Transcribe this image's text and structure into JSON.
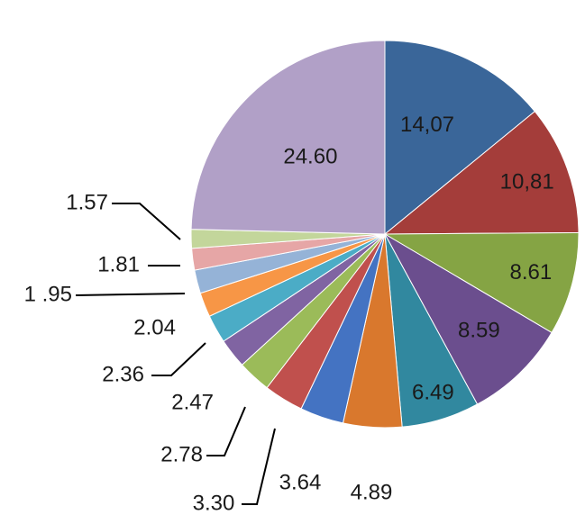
{
  "chart_data": {
    "type": "pie",
    "title": "",
    "start_angle_deg": 0,
    "direction": "clockwise",
    "slices": [
      {
        "label": "14,07",
        "value": 14.07,
        "color": "#3a6699"
      },
      {
        "label": "10,81",
        "value": 10.81,
        "color": "#a43d3a"
      },
      {
        "label": "8.61",
        "value": 8.61,
        "color": "#85a444"
      },
      {
        "label": "8.59",
        "value": 8.59,
        "color": "#6b4e8e"
      },
      {
        "label": "6.49",
        "value": 6.49,
        "color": "#31889f"
      },
      {
        "label": "4.89",
        "value": 4.89,
        "color": "#d9782d"
      },
      {
        "label": "3.64",
        "value": 3.64,
        "color": "#4473c2"
      },
      {
        "label": "3.30",
        "value": 3.3,
        "color": "#c0504d"
      },
      {
        "label": "2.78",
        "value": 2.78,
        "color": "#9bbb59"
      },
      {
        "label": "2.47",
        "value": 2.47,
        "color": "#8064a2"
      },
      {
        "label": "2.36",
        "value": 2.36,
        "color": "#4bacc6"
      },
      {
        "label": "2.04",
        "value": 2.04,
        "color": "#f79646"
      },
      {
        "label": "1 .95",
        "value": 1.95,
        "color": "#95b3d7"
      },
      {
        "label": "1.81",
        "value": 1.81,
        "color": "#e6a6a6"
      },
      {
        "label": "1.57",
        "value": 1.57,
        "color": "#c3d69b"
      },
      {
        "label": "24.60",
        "value": 24.6,
        "color": "#b1a0c7"
      }
    ]
  }
}
